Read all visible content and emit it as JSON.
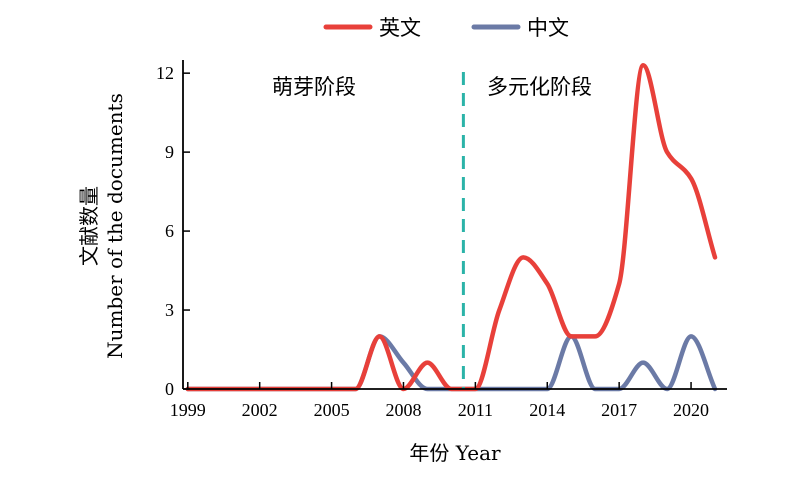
{
  "chart_data": {
    "type": "line",
    "x": [
      1999,
      2000,
      2001,
      2002,
      2003,
      2004,
      2005,
      2006,
      2007,
      2008,
      2009,
      2010,
      2011,
      2012,
      2013,
      2014,
      2015,
      2016,
      2017,
      2018,
      2019,
      2020,
      2021
    ],
    "series": [
      {
        "name": "英文",
        "color": "#e8403a",
        "values": [
          0,
          0,
          0,
          0,
          0,
          0,
          0,
          0,
          2,
          0,
          1,
          0,
          0,
          3,
          5,
          4,
          2,
          2,
          4,
          12.3,
          9,
          8,
          5
        ]
      },
      {
        "name": "中文",
        "color": "#6b7aa6",
        "values": [
          0,
          0,
          0,
          0,
          0,
          0,
          0,
          0,
          2,
          1,
          0,
          0,
          0,
          0,
          0,
          0,
          2,
          0,
          0,
          1,
          0,
          2,
          0
        ]
      }
    ],
    "xlabel": "年份 Year",
    "ylabel_cn": "文献数量",
    "ylabel_en": "Number of the documents",
    "xticks": [
      "1999",
      "2002",
      "2005",
      "2008",
      "2011",
      "2014",
      "2017",
      "2020"
    ],
    "yticks": [
      "0",
      "3",
      "6",
      "9",
      "12"
    ],
    "ylim": [
      0,
      12.5
    ],
    "xlim": [
      1998.8,
      2021.5
    ],
    "divider": {
      "x": 2010.5,
      "color": "#2bb3a8",
      "style": "dashed"
    },
    "phases": [
      "萌芽阶段",
      "多元化阶段"
    ],
    "legend_position": "top"
  }
}
